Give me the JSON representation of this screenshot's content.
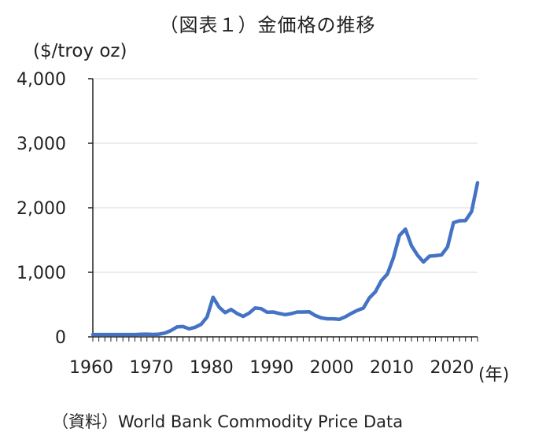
{
  "chart_data": {
    "type": "line",
    "title": "（図表１）金価格の推移",
    "ylabel": "($/troy oz)",
    "xlabel": "(年)",
    "source": "（資料）World Bank Commodity Price Data",
    "xlim": [
      1960,
      2024
    ],
    "ylim": [
      0,
      4000
    ],
    "x_ticks": [
      "1960",
      "1970",
      "1980",
      "1990",
      "2000",
      "2010",
      "2020"
    ],
    "y_ticks": [
      "0",
      "1,000",
      "2,000",
      "3,000",
      "4,000"
    ],
    "grid": true,
    "series_color": "#4472c4",
    "series": [
      {
        "name": "",
        "x": [
          1960,
          1961,
          1962,
          1963,
          1964,
          1965,
          1966,
          1967,
          1968,
          1969,
          1970,
          1971,
          1972,
          1973,
          1974,
          1975,
          1976,
          1977,
          1978,
          1979,
          1980,
          1981,
          1982,
          1983,
          1984,
          1985,
          1986,
          1987,
          1988,
          1989,
          1990,
          1991,
          1992,
          1993,
          1994,
          1995,
          1996,
          1997,
          1998,
          1999,
          2000,
          2001,
          2002,
          2003,
          2004,
          2005,
          2006,
          2007,
          2008,
          2009,
          2010,
          2011,
          2012,
          2013,
          2014,
          2015,
          2016,
          2017,
          2018,
          2019,
          2020,
          2021,
          2022,
          2023,
          2024
        ],
        "y": [
          35,
          35,
          35,
          35,
          35,
          35,
          35,
          35,
          39,
          41,
          36,
          41,
          58,
          97,
          154,
          160,
          125,
          148,
          193,
          307,
          613,
          460,
          376,
          424,
          361,
          317,
          368,
          447,
          437,
          381,
          384,
          362,
          344,
          360,
          384,
          384,
          388,
          331,
          294,
          279,
          279,
          271,
          310,
          363,
          410,
          445,
          604,
          697,
          872,
          973,
          1225,
          1569,
          1669,
          1411,
          1266,
          1160,
          1250,
          1257,
          1269,
          1393,
          1770,
          1799,
          1801,
          1943,
          2388
        ]
      }
    ]
  }
}
